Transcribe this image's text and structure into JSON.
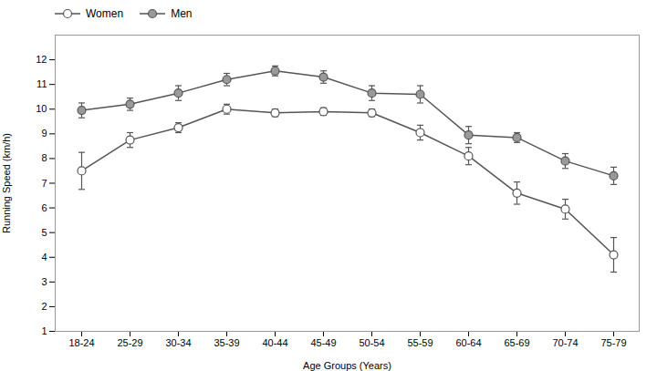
{
  "chart_data": {
    "type": "line",
    "categories": [
      "18-24",
      "25-29",
      "30-34",
      "35-39",
      "40-44",
      "45-49",
      "50-54",
      "55-59",
      "60-64",
      "65-69",
      "70-74",
      "75-79"
    ],
    "series": [
      {
        "name": "Women",
        "color": "#ffffff",
        "marker": "circle",
        "line_style": "solid",
        "values": [
          7.5,
          8.75,
          9.25,
          10.0,
          9.85,
          9.9,
          9.85,
          9.05,
          8.1,
          6.6,
          5.95,
          4.1
        ],
        "errors": [
          0.75,
          0.3,
          0.2,
          0.2,
          0.15,
          0.15,
          0.15,
          0.3,
          0.35,
          0.45,
          0.4,
          0.7
        ]
      },
      {
        "name": "Men",
        "color": "#999999",
        "marker": "circle",
        "line_style": "solid",
        "values": [
          9.95,
          10.2,
          10.65,
          11.2,
          11.55,
          11.3,
          10.65,
          10.6,
          8.95,
          8.85,
          7.9,
          7.3
        ],
        "errors": [
          0.3,
          0.25,
          0.3,
          0.25,
          0.2,
          0.25,
          0.3,
          0.35,
          0.35,
          0.2,
          0.3,
          0.35
        ]
      }
    ],
    "color": "#555555",
    "xlabel": "Age Groups (Years)",
    "ylabel": "Running Speed (km/h)",
    "ylim": [
      1,
      13
    ],
    "yticks": [
      1,
      2,
      3,
      4,
      5,
      6,
      7,
      8,
      9,
      10,
      11,
      12
    ],
    "grid": false,
    "legend": "upper left"
  }
}
